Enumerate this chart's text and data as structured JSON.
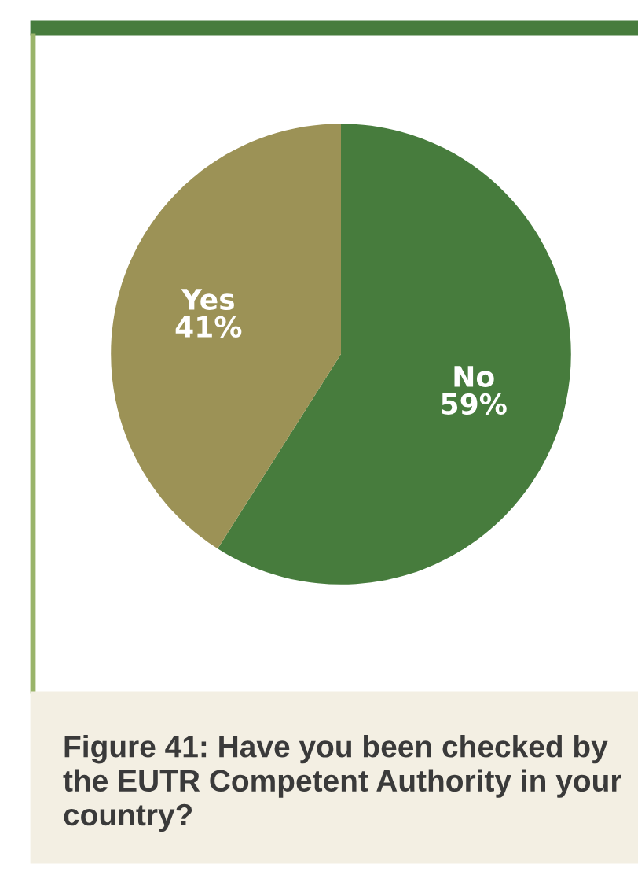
{
  "chart_data": {
    "type": "pie",
    "title": "Figure 41: Have you been checked by the EUTR Competent Authority in your country?",
    "categories": [
      "No",
      "Yes"
    ],
    "values": [
      59,
      41
    ],
    "colors": [
      "#477c3d",
      "#9c9256"
    ],
    "value_labels": [
      "59%",
      "41%"
    ],
    "legend": false
  }
}
